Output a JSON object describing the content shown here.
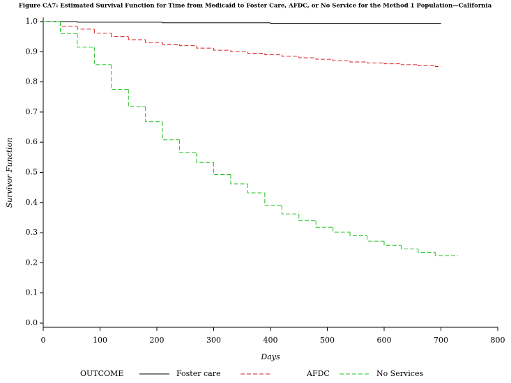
{
  "chart_data": {
    "type": "line",
    "step": true,
    "title": "Figure CA7:  Estimated Survival Function for Time from Medicaid to Foster Care, AFDC, or No Service for the Method 1 Population—California",
    "xlabel": "Days",
    "ylabel": "Survivor Function",
    "legend_title": "OUTCOME",
    "xlim": [
      0,
      800
    ],
    "xticks": [
      0,
      100,
      200,
      300,
      400,
      500,
      600,
      700,
      800
    ],
    "ylim": [
      0,
      1
    ],
    "yticks": [
      {
        "value": 0,
        "label": "0.0"
      },
      0.1,
      0.2,
      0.3,
      0.4,
      0.5,
      0.6,
      0.7,
      0.8,
      0.9,
      {
        "value": 1,
        "label": "1.0"
      }
    ],
    "series": [
      {
        "name": "Foster care",
        "color": "#000000",
        "dash": "solid",
        "x": [
          0,
          60,
          210,
          400,
          700
        ],
        "values": [
          1.0,
          0.998,
          0.996,
          0.994,
          0.993
        ]
      },
      {
        "name": "AFDC",
        "color": "#d62020",
        "dash": "dashed",
        "x": [
          0,
          30,
          60,
          90,
          120,
          150,
          180,
          210,
          240,
          270,
          300,
          330,
          360,
          390,
          420,
          450,
          480,
          510,
          540,
          570,
          600,
          630,
          660,
          690,
          700
        ],
        "values": [
          1.0,
          0.985,
          0.975,
          0.962,
          0.95,
          0.94,
          0.93,
          0.925,
          0.92,
          0.912,
          0.905,
          0.9,
          0.895,
          0.89,
          0.885,
          0.88,
          0.875,
          0.87,
          0.866,
          0.863,
          0.86,
          0.857,
          0.854,
          0.851,
          0.851
        ]
      },
      {
        "name": "No Services",
        "color": "#20c020",
        "dash": "dashed",
        "x": [
          0,
          30,
          60,
          90,
          120,
          150,
          180,
          210,
          240,
          270,
          300,
          330,
          360,
          390,
          420,
          450,
          480,
          510,
          540,
          570,
          600,
          630,
          660,
          690,
          730
        ],
        "values": [
          1.0,
          0.96,
          0.915,
          0.857,
          0.775,
          0.718,
          0.668,
          0.608,
          0.565,
          0.533,
          0.493,
          0.462,
          0.432,
          0.39,
          0.362,
          0.34,
          0.318,
          0.302,
          0.29,
          0.272,
          0.258,
          0.246,
          0.234,
          0.224,
          0.224
        ]
      }
    ]
  }
}
